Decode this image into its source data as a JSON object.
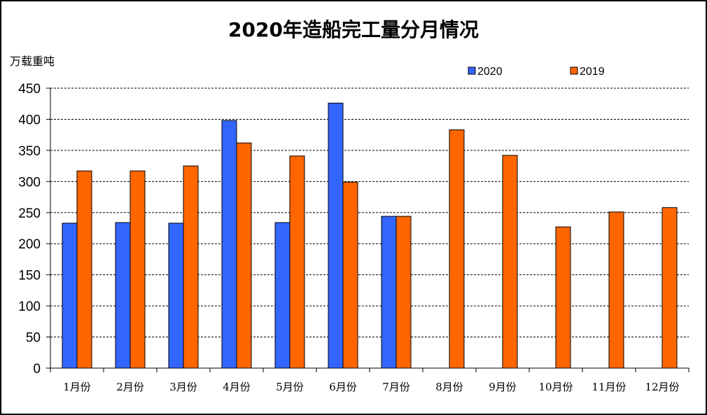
{
  "chart_data": {
    "type": "bar",
    "title": "2020年造船完工量分月情况",
    "ylabel": "万载重吨",
    "xlabel": "",
    "categories": [
      "1月份",
      "2月份",
      "3月份",
      "4月份",
      "5月份",
      "6月份",
      "7月份",
      "8月份",
      "9月份",
      "10月份",
      "11月份",
      "12月份"
    ],
    "series": [
      {
        "name": "2020",
        "color": "#3366ff",
        "values": [
          233,
          234,
          233,
          398,
          234,
          426,
          244,
          null,
          null,
          null,
          null,
          null
        ]
      },
      {
        "name": "2019",
        "color": "#ff6600",
        "values": [
          317,
          317,
          325,
          362,
          341,
          299,
          244,
          383,
          342,
          227,
          251,
          258
        ]
      }
    ],
    "ylim": [
      0,
      450
    ],
    "yticks": [
      "0",
      "50",
      "100",
      "150",
      "200",
      "250",
      "300",
      "350",
      "400",
      "450"
    ],
    "grid": true,
    "legend_position": "top-right"
  }
}
